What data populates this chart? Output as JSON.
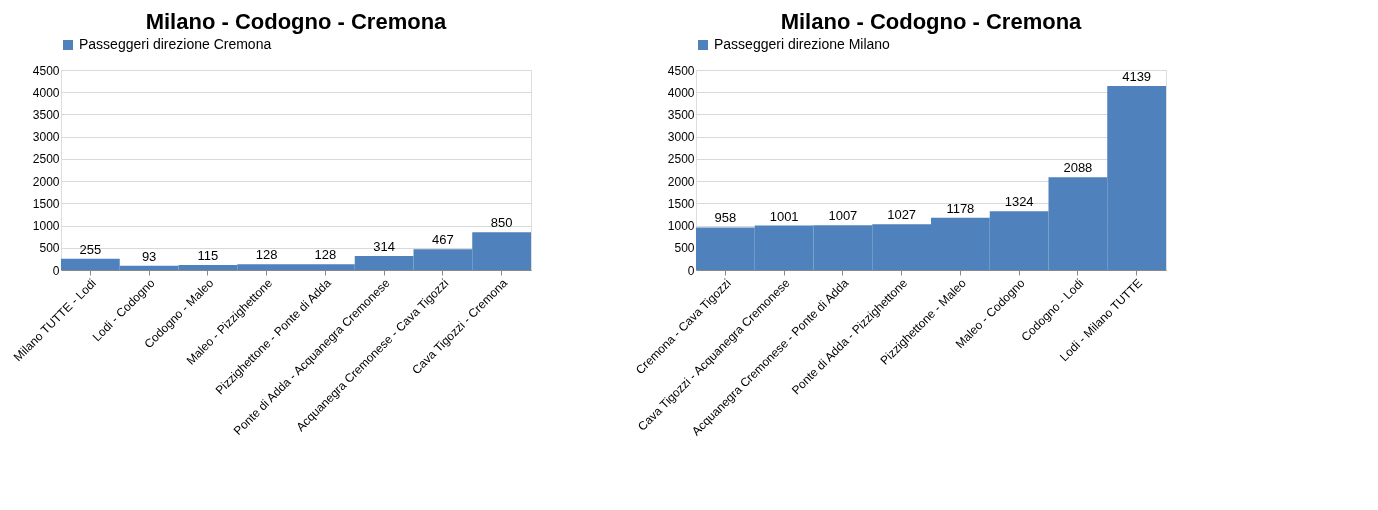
{
  "chart_data": [
    {
      "type": "bar",
      "title": "Milano - Codogno - Cremona",
      "categories": [
        "Milano TUTTE - Lodi",
        "Lodi - Codogno",
        "Codogno - Maleo",
        "Maleo - Pizzighettone",
        "Pizzighettone - Ponte di Adda",
        "Ponte di Adda - Acquanegra Cremonese",
        "Acquanegra Cremonese - Cava Tigozzi",
        "Cava Tigozzi - Cremona"
      ],
      "series": [
        {
          "name": "Passeggeri direzione Cremona",
          "color": "#4f81bd",
          "values": [
            255,
            93,
            115,
            128,
            128,
            314,
            467,
            850
          ]
        }
      ],
      "ylim": [
        0,
        4500
      ],
      "yticks": [
        0,
        500,
        1000,
        1500,
        2000,
        2500,
        3000,
        3500,
        4000,
        4500
      ],
      "grid": "y",
      "legend": "top",
      "data_labels": true
    },
    {
      "type": "bar",
      "title": "Milano - Codogno - Cremona",
      "categories": [
        "Cremona - Cava Tigozzi",
        "Cava Tigozzi - Acquanegra Cremonese",
        "Acquanegra Cremonese - Ponte di Adda",
        "Ponte di Adda - Pizzighettone",
        "Pizzighettone - Maleo",
        "Maleo - Codogno",
        "Codogno - Lodi",
        "Lodi - Milano TUTTE"
      ],
      "series": [
        {
          "name": "Passeggeri direzione Milano",
          "color": "#4f81bd",
          "values": [
            958,
            1001,
            1007,
            1027,
            1178,
            1324,
            2088,
            4139
          ]
        }
      ],
      "ylim": [
        0,
        4500
      ],
      "yticks": [
        0,
        500,
        1000,
        1500,
        2000,
        2500,
        3000,
        3500,
        4000,
        4500
      ],
      "grid": "y",
      "legend": "top",
      "data_labels": true
    }
  ]
}
